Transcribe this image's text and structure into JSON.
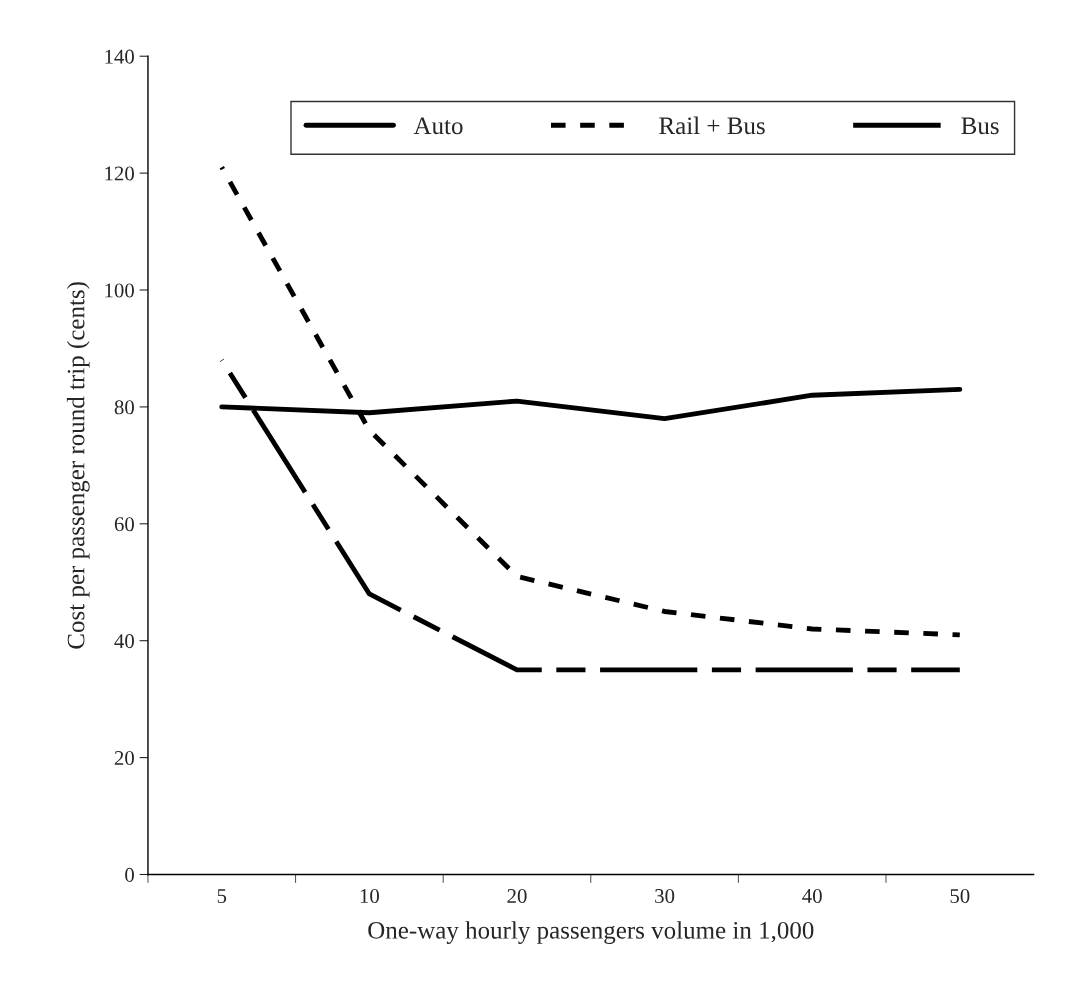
{
  "chart_data": {
    "type": "line",
    "xlabel": "One-way hourly passengers volume in 1,000",
    "ylabel": "Cost per passenger round trip (cents)",
    "categories": [
      "5",
      "10",
      "20",
      "30",
      "40",
      "50"
    ],
    "series": [
      {
        "name": "Auto",
        "color": "#000000",
        "line_style": "solid",
        "values": [
          80,
          79,
          81,
          78,
          82,
          83
        ]
      },
      {
        "name": "Rail + Bus",
        "color": "#000000",
        "line_style": "dotted",
        "values": [
          121,
          76,
          51,
          45,
          42,
          41
        ]
      },
      {
        "name": "Bus",
        "color": "#000000",
        "line_style": "dashed",
        "values": [
          88,
          48,
          35,
          35,
          35,
          35
        ]
      }
    ],
    "ylim": [
      0,
      140
    ],
    "yticks": [
      0,
      20,
      40,
      60,
      80,
      100,
      120,
      140
    ],
    "grid": false,
    "legend": "top",
    "marker": "none"
  }
}
